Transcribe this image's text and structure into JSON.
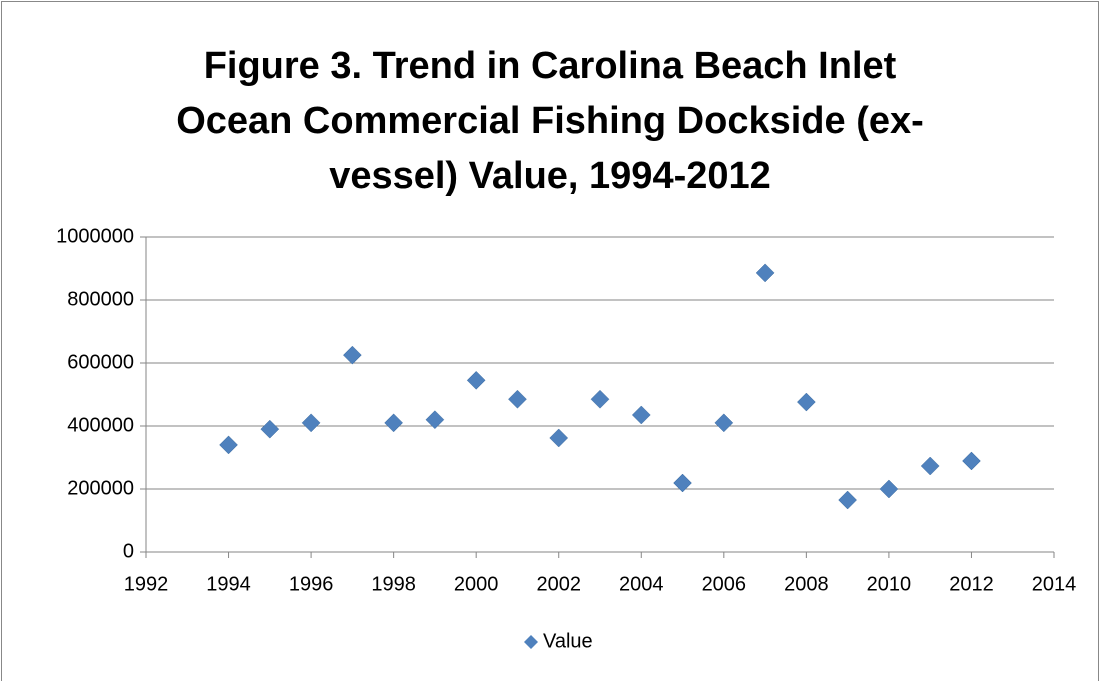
{
  "chart_data": {
    "type": "scatter",
    "title": [
      "Figure 3. Trend in Carolina Beach Inlet",
      "Ocean Commercial Fishing Dockside (ex-",
      "vessel) Value, 1994-2012"
    ],
    "series": [
      {
        "name": "Value",
        "color": "#4f81bd",
        "x": [
          1994,
          1995,
          1996,
          1997,
          1998,
          1999,
          2000,
          2001,
          2002,
          2003,
          2004,
          2005,
          2006,
          2007,
          2008,
          2009,
          2010,
          2011,
          2012
        ],
        "values": [
          340000,
          390000,
          410000,
          625000,
          410000,
          420000,
          545000,
          485000,
          362000,
          485000,
          435000,
          219000,
          410000,
          886000,
          476000,
          165000,
          200000,
          273000,
          289000
        ]
      }
    ],
    "xlim": [
      1992,
      2014
    ],
    "xticks": [
      1992,
      1994,
      1996,
      1998,
      2000,
      2002,
      2004,
      2006,
      2008,
      2010,
      2012,
      2014
    ],
    "ylim": [
      0,
      1000000
    ],
    "yticks": [
      0,
      200000,
      400000,
      600000,
      800000,
      1000000
    ],
    "grid": true,
    "legend": "bottom"
  }
}
